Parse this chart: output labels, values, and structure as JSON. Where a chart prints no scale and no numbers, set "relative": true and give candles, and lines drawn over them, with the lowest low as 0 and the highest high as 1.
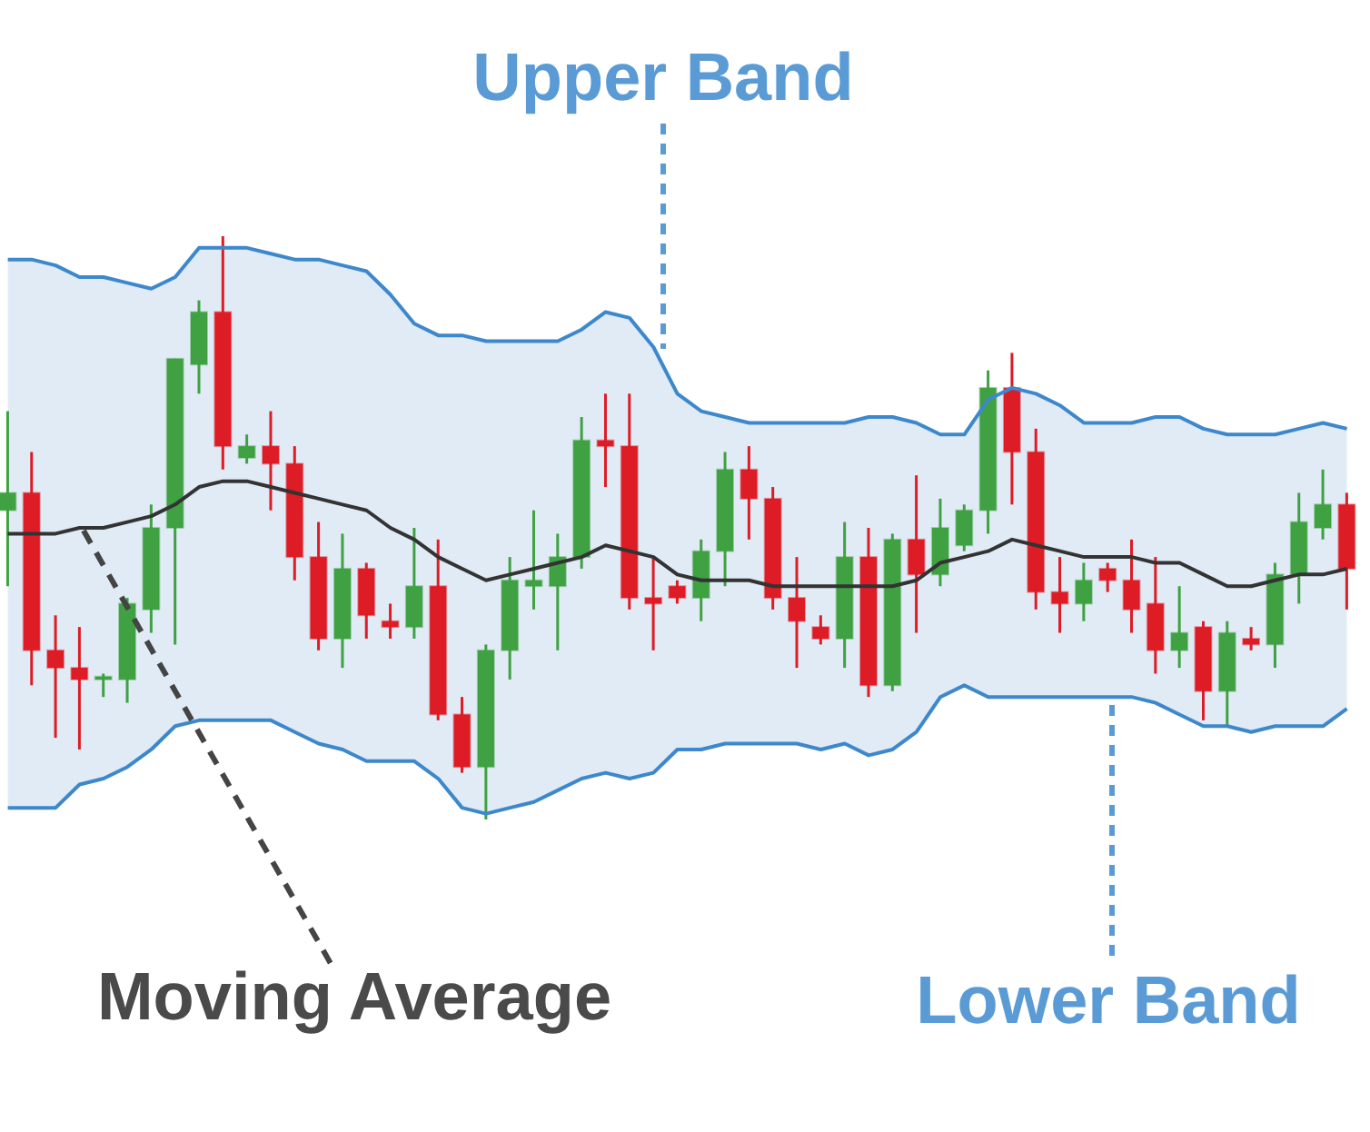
{
  "chart_data": {
    "type": "candlestick",
    "relative": true,
    "categories": [
      null,
      null,
      null,
      null,
      null,
      null,
      null,
      null,
      null,
      null,
      null,
      null,
      null,
      null,
      null,
      null,
      null,
      null,
      null,
      null,
      null,
      null,
      null,
      null,
      null,
      null,
      null,
      null,
      null,
      null,
      null,
      null,
      null,
      null,
      null,
      null,
      null,
      null,
      null,
      null,
      null,
      null,
      null,
      null,
      null,
      null,
      null,
      null,
      null,
      null,
      null,
      null,
      null,
      null,
      null,
      null,
      null
    ],
    "ohlc": [
      [
        0.53,
        0.7,
        0.4,
        0.56
      ],
      [
        0.56,
        0.63,
        0.23,
        0.29
      ],
      [
        0.29,
        0.35,
        0.14,
        0.26
      ],
      [
        0.26,
        0.33,
        0.12,
        0.24
      ],
      [
        0.24,
        0.25,
        0.21,
        0.245
      ],
      [
        0.24,
        0.38,
        0.2,
        0.37
      ],
      [
        0.36,
        0.54,
        0.32,
        0.5
      ],
      [
        0.5,
        0.79,
        0.3,
        0.79
      ],
      [
        0.78,
        0.89,
        0.73,
        0.87
      ],
      [
        0.87,
        1,
        0.6,
        0.64
      ],
      [
        0.62,
        0.66,
        0.61,
        0.64
      ],
      [
        0.64,
        0.7,
        0.53,
        0.61
      ],
      [
        0.61,
        0.64,
        0.41,
        0.45
      ],
      [
        0.45,
        0.51,
        0.29,
        0.31
      ],
      [
        0.31,
        0.49,
        0.26,
        0.43
      ],
      [
        0.43,
        0.44,
        0.31,
        0.35
      ],
      [
        0.34,
        0.37,
        0.31,
        0.33
      ],
      [
        0.33,
        0.5,
        0.31,
        0.4
      ],
      [
        0.4,
        0.48,
        0.17,
        0.18
      ],
      [
        0.18,
        0.21,
        0.08,
        0.09
      ],
      [
        0.09,
        0.3,
        0,
        0.29
      ],
      [
        0.29,
        0.45,
        0.24,
        0.41
      ],
      [
        0.4,
        0.53,
        0.36,
        0.41
      ],
      [
        0.4,
        0.49,
        0.29,
        0.45
      ],
      [
        0.45,
        0.69,
        0.43,
        0.65
      ],
      [
        0.65,
        0.73,
        0.57,
        0.64
      ],
      [
        0.64,
        0.73,
        0.36,
        0.38
      ],
      [
        0.38,
        0.45,
        0.29,
        0.37
      ],
      [
        0.4,
        0.41,
        0.37,
        0.38
      ],
      [
        0.38,
        0.48,
        0.34,
        0.46
      ],
      [
        0.46,
        0.63,
        0.4,
        0.6
      ],
      [
        0.6,
        0.64,
        0.48,
        0.55
      ],
      [
        0.55,
        0.57,
        0.36,
        0.38
      ],
      [
        0.38,
        0.45,
        0.26,
        0.34
      ],
      [
        0.33,
        0.35,
        0.3,
        0.31
      ],
      [
        0.31,
        0.51,
        0.26,
        0.45
      ],
      [
        0.45,
        0.5,
        0.21,
        0.23
      ],
      [
        0.23,
        0.49,
        0.22,
        0.48
      ],
      [
        0.48,
        0.59,
        0.32,
        0.42
      ],
      [
        0.42,
        0.55,
        0.4,
        0.5
      ],
      [
        0.47,
        0.54,
        0.46,
        0.53
      ],
      [
        0.53,
        0.77,
        0.49,
        0.74
      ],
      [
        0.74,
        0.8,
        0.54,
        0.63
      ],
      [
        0.63,
        0.67,
        0.36,
        0.39
      ],
      [
        0.39,
        0.45,
        0.32,
        0.37
      ],
      [
        0.37,
        0.44,
        0.34,
        0.41
      ],
      [
        0.43,
        0.44,
        0.39,
        0.41
      ],
      [
        0.41,
        0.48,
        0.32,
        0.36
      ],
      [
        0.37,
        0.45,
        0.25,
        0.29
      ],
      [
        0.29,
        0.4,
        0.26,
        0.32
      ],
      [
        0.33,
        0.34,
        0.17,
        0.22
      ],
      [
        0.22,
        0.34,
        0.16,
        0.32
      ],
      [
        0.31,
        0.33,
        0.29,
        0.3
      ],
      [
        0.3,
        0.44,
        0.26,
        0.42
      ],
      [
        0.42,
        0.56,
        0.37,
        0.51
      ],
      [
        0.5,
        0.6,
        0.48,
        0.54
      ],
      [
        0.54,
        0.56,
        0.36,
        0.43
      ]
    ],
    "colors": [
      "#3fa142",
      "#dd1c26",
      "#dd1c26",
      "#dd1c26",
      "#3fa142",
      "#3fa142",
      "#3fa142",
      "#3fa142",
      "#3fa142",
      "#dd1c26",
      "#3fa142",
      "#dd1c26",
      "#dd1c26",
      "#dd1c26",
      "#3fa142",
      "#dd1c26",
      "#dd1c26",
      "#3fa142",
      "#dd1c26",
      "#dd1c26",
      "#3fa142",
      "#3fa142",
      "#3fa142",
      "#3fa142",
      "#3fa142",
      "#dd1c26",
      "#dd1c26",
      "#dd1c26",
      "#dd1c26",
      "#3fa142",
      "#3fa142",
      "#dd1c26",
      "#dd1c26",
      "#dd1c26",
      "#dd1c26",
      "#3fa142",
      "#dd1c26",
      "#3fa142",
      "#dd1c26",
      "#3fa142",
      "#3fa142",
      "#3fa142",
      "#dd1c26",
      "#dd1c26",
      "#dd1c26",
      "#3fa142",
      "#dd1c26",
      "#dd1c26",
      "#dd1c26",
      "#3fa142",
      "#dd1c26",
      "#3fa142",
      "#dd1c26",
      "#3fa142",
      "#3fa142",
      "#3fa142",
      "#dd1c26"
    ],
    "series": [
      {
        "type": "line",
        "name": "Upper Band",
        "color": "#3d88cc",
        "values": [
          0.96,
          0.96,
          0.95,
          0.93,
          0.93,
          0.92,
          0.91,
          0.93,
          0.98,
          0.98,
          0.98,
          0.97,
          0.96,
          0.96,
          0.95,
          0.94,
          0.9,
          0.85,
          0.83,
          0.83,
          0.82,
          0.82,
          0.82,
          0.82,
          0.84,
          0.87,
          0.86,
          0.81,
          0.73,
          0.7,
          0.69,
          0.68,
          0.68,
          0.68,
          0.68,
          0.68,
          0.69,
          0.69,
          0.68,
          0.66,
          0.66,
          0.72,
          0.74,
          0.73,
          0.71,
          0.68,
          0.68,
          0.68,
          0.69,
          0.69,
          0.67,
          0.66,
          0.66,
          0.66,
          0.67,
          0.68,
          0.67
        ]
      },
      {
        "type": "line",
        "name": "Lower Band",
        "color": "#3d88cc",
        "values": [
          0.02,
          0.02,
          0.02,
          0.06,
          0.07,
          0.09,
          0.12,
          0.16,
          0.17,
          0.17,
          0.17,
          0.17,
          0.15,
          0.13,
          0.12,
          0.1,
          0.1,
          0.1,
          0.07,
          0.02,
          0.01,
          0.02,
          0.03,
          0.05,
          0.07,
          0.08,
          0.07,
          0.08,
          0.12,
          0.12,
          0.13,
          0.13,
          0.13,
          0.13,
          0.12,
          0.13,
          0.11,
          0.12,
          0.15,
          0.21,
          0.23,
          0.21,
          0.21,
          0.21,
          0.21,
          0.21,
          0.21,
          0.21,
          0.2,
          0.18,
          0.16,
          0.16,
          0.15,
          0.16,
          0.16,
          0.16,
          0.19
        ]
      },
      {
        "type": "line",
        "name": "Moving Average",
        "color": "#333333",
        "values": [
          0.49,
          0.49,
          0.49,
          0.5,
          0.5,
          0.51,
          0.52,
          0.54,
          0.57,
          0.58,
          0.58,
          0.57,
          0.56,
          0.55,
          0.54,
          0.53,
          0.5,
          0.48,
          0.45,
          0.43,
          0.41,
          0.42,
          0.43,
          0.44,
          0.45,
          0.47,
          0.46,
          0.45,
          0.42,
          0.41,
          0.41,
          0.41,
          0.4,
          0.4,
          0.4,
          0.4,
          0.4,
          0.4,
          0.41,
          0.44,
          0.45,
          0.46,
          0.48,
          0.47,
          0.46,
          0.45,
          0.45,
          0.45,
          0.44,
          0.44,
          0.42,
          0.4,
          0.4,
          0.41,
          0.42,
          0.42,
          0.43
        ],
        "lower": [
          0.02,
          0.02,
          0.02,
          0.06,
          0.07,
          0.09,
          0.12,
          0.16,
          0.17,
          0.17,
          0.17,
          0.17,
          0.15,
          0.13,
          0.12,
          0.1,
          0.1,
          0.1,
          0.07,
          0.02,
          0.01,
          0.02,
          0.03,
          0.05,
          0.07,
          0.08,
          0.07,
          0.08,
          0.12,
          0.12,
          0.13,
          0.13,
          0.13,
          0.13,
          0.12,
          0.13,
          0.11,
          0.12,
          0.15,
          0.21,
          0.23,
          0.21,
          0.21,
          0.21,
          0.21,
          0.21,
          0.21,
          0.21,
          0.2,
          0.18,
          0.16,
          0.16,
          0.15,
          0.16,
          0.16,
          0.16,
          0.19
        ],
        "upper": [
          0.96,
          0.96,
          0.95,
          0.93,
          0.93,
          0.92,
          0.91,
          0.93,
          0.98,
          0.98,
          0.98,
          0.97,
          0.96,
          0.96,
          0.95,
          0.94,
          0.9,
          0.85,
          0.83,
          0.83,
          0.82,
          0.82,
          0.82,
          0.82,
          0.84,
          0.87,
          0.86,
          0.81,
          0.73,
          0.7,
          0.69,
          0.68,
          0.68,
          0.68,
          0.68,
          0.68,
          0.69,
          0.69,
          0.68,
          0.66,
          0.66,
          0.72,
          0.74,
          0.73,
          0.71,
          0.68,
          0.68,
          0.68,
          0.69,
          0.69,
          0.67,
          0.66,
          0.66,
          0.66,
          0.67,
          0.68,
          0.67
        ]
      }
    ]
  }
}
